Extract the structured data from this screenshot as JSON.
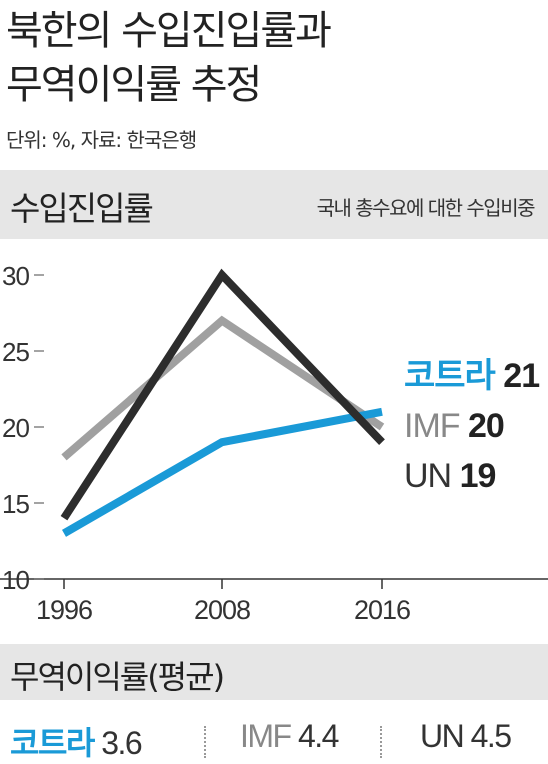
{
  "header": {
    "title_line1": "북한의 수입진입률과",
    "title_line2": "무역이익률 추정",
    "meta": "단위: %, 자료: 한국은행"
  },
  "section1": {
    "title": "수입진입률",
    "subtitle": "국내 총수요에 대한 수입비중"
  },
  "chart_data": {
    "type": "line",
    "title": "수입진입률",
    "subtitle": "국내 총수요에 대한 수입비중",
    "x": [
      1996,
      2008,
      2016
    ],
    "x_tick_labels": [
      "1996",
      "2008",
      "2016"
    ],
    "ylim": [
      10,
      30
    ],
    "y_ticks": [
      10,
      15,
      20,
      25,
      30
    ],
    "y_tick_labels": [
      "10",
      "15",
      "20",
      "25",
      "30"
    ],
    "grid": false,
    "legend_placement": "right (inline end labels)",
    "series": [
      {
        "name": "코트라",
        "values": [
          13,
          19,
          21
        ],
        "end_label": "21",
        "color": "#1a9ad7"
      },
      {
        "name": "IMF",
        "values": [
          18,
          27,
          20
        ],
        "end_label": "20",
        "color": "#a0a0a0"
      },
      {
        "name": "UN",
        "values": [
          14,
          30,
          19
        ],
        "end_label": "19",
        "color": "#2d2d2d"
      }
    ]
  },
  "section2": {
    "title": "무역이익률(평균)",
    "stats": [
      {
        "name": "코트라",
        "value": "3.6",
        "color": "#1a9ad7"
      },
      {
        "name": "IMF",
        "value": "4.4",
        "color": "#a0a0a0"
      },
      {
        "name": "UN",
        "value": "4.5",
        "color": "#2d2d2d"
      }
    ]
  }
}
